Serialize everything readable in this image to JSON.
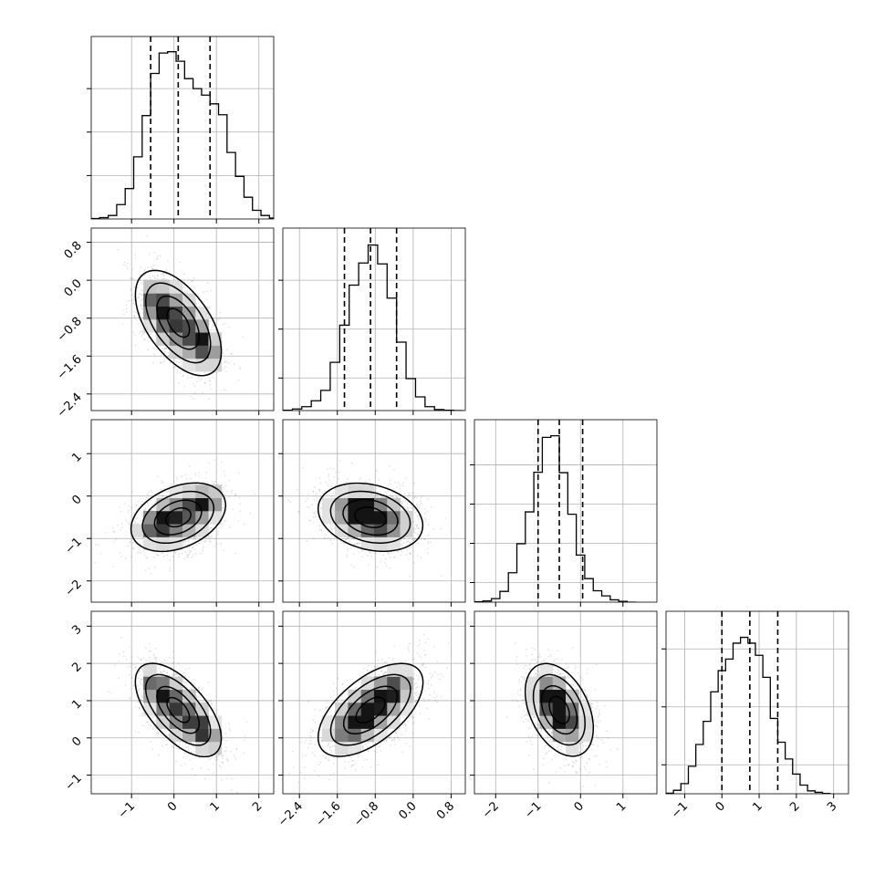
{
  "chart_data": {
    "type": "corner",
    "parameters": 4,
    "grid": true,
    "quantile_lines": "dashed",
    "panels": {
      "hist_0": {
        "type": "histogram",
        "xlim": [
          -1.95,
          2.35
        ],
        "bin_start": -1.95,
        "bin_width": 0.2,
        "counts": [
          1,
          3,
          8,
          33,
          70,
          143,
          238,
          335,
          382,
          385,
          363,
          323,
          300,
          285,
          265,
          240,
          153,
          98,
          50,
          20,
          8,
          2
        ],
        "ylim": [
          0,
          420
        ],
        "quantiles": [
          -0.55,
          0.1,
          0.85
        ],
        "x_ticks": [
          -1,
          0,
          1,
          2
        ],
        "y_ticks": [
          100,
          200,
          300
        ],
        "show_x_tick_labels": false,
        "show_y_tick_labels": false
      },
      "hist_1": {
        "type": "histogram",
        "xlim": [
          -2.75,
          1.1
        ],
        "bin_start": -2.75,
        "bin_width": 0.2,
        "counts": [
          1,
          5,
          12,
          30,
          62,
          148,
          262,
          385,
          453,
          508,
          450,
          345,
          210,
          98,
          42,
          12,
          3,
          1,
          0
        ],
        "ylim": [
          0,
          560
        ],
        "quantiles": [
          -1.45,
          -0.9,
          -0.35
        ],
        "x_ticks": [
          -2.4,
          -1.6,
          -0.8,
          0.0,
          0.8
        ],
        "y_ticks": [
          100,
          250,
          400
        ],
        "show_x_tick_labels": false,
        "show_y_tick_labels": false
      },
      "hist_2": {
        "type": "histogram",
        "xlim": [
          -2.5,
          1.8
        ],
        "bin_start": -2.5,
        "bin_width": 0.2,
        "counts": [
          2,
          6,
          18,
          55,
          150,
          298,
          460,
          662,
          840,
          848,
          660,
          448,
          240,
          120,
          58,
          32,
          12,
          4,
          0
        ],
        "ylim": [
          0,
          930
        ],
        "quantiles": [
          -1.0,
          -0.5,
          0.05
        ],
        "x_ticks": [
          -2,
          -1,
          0,
          1
        ],
        "y_ticks": [
          100,
          300,
          500,
          700
        ],
        "show_x_tick_labels": false,
        "show_y_tick_labels": false
      },
      "hist_3": {
        "type": "histogram",
        "xlim": [
          -1.5,
          3.4
        ],
        "bin_start": -1.5,
        "bin_width": 0.2,
        "counts": [
          2,
          12,
          35,
          95,
          170,
          250,
          352,
          425,
          465,
          520,
          540,
          520,
          478,
          402,
          260,
          178,
          120,
          68,
          30,
          10,
          5,
          1
        ],
        "ylim": [
          0,
          630
        ],
        "quantiles": [
          0.0,
          0.75,
          1.5
        ],
        "x_ticks": [
          -1,
          0,
          1,
          2,
          3
        ],
        "y_ticks": [
          100,
          300,
          500
        ],
        "show_x_tick_labels": true,
        "x_tick_labels": [
          "−1",
          "0",
          "1",
          "2",
          "3"
        ],
        "show_y_tick_labels": false
      },
      "scatter_1_0": {
        "type": "scatter_contour",
        "x_param": 0,
        "y_param": 1,
        "xlim": [
          -1.95,
          2.35
        ],
        "ylim": [
          -2.75,
          1.1
        ],
        "mean": [
          0.1,
          -0.9
        ],
        "std": [
          0.5,
          0.55
        ],
        "corr": -0.55,
        "modes": [
          [
            -0.35,
            -0.6
          ],
          [
            0.7,
            -1.35
          ]
        ],
        "x_ticks": [
          -1,
          0,
          1,
          2
        ],
        "y_ticks": [
          0.8,
          0.0,
          -0.8,
          -1.6,
          -2.4
        ],
        "y_tick_labels": [
          "0.8",
          "0.0",
          "−0.8",
          "−1.6",
          "−2.4"
        ],
        "show_x_tick_labels": false,
        "show_y_tick_labels": true
      },
      "scatter_2_0": {
        "type": "scatter_contour",
        "x_param": 0,
        "y_param": 2,
        "xlim": [
          -1.95,
          2.35
        ],
        "ylim": [
          -2.5,
          1.8
        ],
        "mean": [
          0.1,
          -0.5
        ],
        "std": [
          0.55,
          0.4
        ],
        "corr": 0.35,
        "modes": [
          [
            -0.35,
            -0.65
          ],
          [
            0.7,
            -0.15
          ]
        ],
        "x_ticks": [
          -1,
          0,
          1,
          2
        ],
        "y_ticks": [
          1,
          0,
          -1,
          -2
        ],
        "y_tick_labels": [
          "1",
          "0",
          "−1",
          "−2"
        ],
        "show_x_tick_labels": false,
        "show_y_tick_labels": true
      },
      "scatter_2_1": {
        "type": "scatter_contour",
        "x_param": 1,
        "y_param": 2,
        "xlim": [
          -2.75,
          1.1
        ],
        "ylim": [
          -2.5,
          1.8
        ],
        "mean": [
          -0.9,
          -0.5
        ],
        "std": [
          0.55,
          0.4
        ],
        "corr": -0.25,
        "modes": [
          [
            -1.1,
            -0.35
          ],
          [
            -0.8,
            -0.55
          ]
        ],
        "x_ticks": [
          -2.4,
          -1.6,
          -0.8,
          0.0,
          0.8
        ],
        "y_ticks": [
          1,
          0,
          -1,
          -2
        ],
        "show_x_tick_labels": false,
        "show_y_tick_labels": false
      },
      "scatter_3_0": {
        "type": "scatter_contour",
        "x_param": 0,
        "y_param": 3,
        "xlim": [
          -1.95,
          2.35
        ],
        "ylim": [
          -1.5,
          3.4
        ],
        "mean": [
          0.1,
          0.75
        ],
        "std": [
          0.5,
          0.62
        ],
        "corr": -0.62,
        "modes": [
          [
            -0.35,
            1.25
          ],
          [
            0.7,
            0.2
          ]
        ],
        "x_ticks": [
          -1,
          0,
          1,
          2
        ],
        "x_tick_labels": [
          "−1",
          "0",
          "1",
          "2"
        ],
        "y_ticks": [
          3,
          2,
          1,
          0,
          -1
        ],
        "y_tick_labels": [
          "3",
          "2",
          "1",
          "0",
          "−1"
        ],
        "show_x_tick_labels": true,
        "show_y_tick_labels": true
      },
      "scatter_3_1": {
        "type": "scatter_contour",
        "x_param": 1,
        "y_param": 3,
        "xlim": [
          -2.75,
          1.1
        ],
        "ylim": [
          -1.5,
          3.4
        ],
        "mean": [
          -0.9,
          0.75
        ],
        "std": [
          0.55,
          0.62
        ],
        "corr": 0.6,
        "modes": [
          [
            -1.2,
            0.4
          ],
          [
            -0.55,
            1.2
          ]
        ],
        "x_ticks": [
          -2.4,
          -1.6,
          -0.8,
          0.0,
          0.8
        ],
        "x_tick_labels": [
          "−2.4",
          "−1.6",
          "−0.8",
          "0.0",
          "0.8"
        ],
        "y_ticks": [
          3,
          2,
          1,
          0,
          -1
        ],
        "show_x_tick_labels": true,
        "show_y_tick_labels": false
      },
      "scatter_3_2": {
        "type": "scatter_contour",
        "x_param": 2,
        "y_param": 3,
        "xlim": [
          -2.5,
          1.8
        ],
        "ylim": [
          -1.5,
          3.4
        ],
        "mean": [
          -0.5,
          0.75
        ],
        "std": [
          0.4,
          0.62
        ],
        "corr": -0.4,
        "modes": [
          [
            -0.65,
            1.05
          ],
          [
            -0.45,
            0.6
          ]
        ],
        "x_ticks": [
          -2,
          -1,
          0,
          1
        ],
        "x_tick_labels": [
          "−2",
          "−1",
          "0",
          "1"
        ],
        "y_ticks": [
          3,
          2,
          1,
          0,
          -1
        ],
        "show_x_tick_labels": true,
        "show_y_tick_labels": false
      }
    }
  }
}
